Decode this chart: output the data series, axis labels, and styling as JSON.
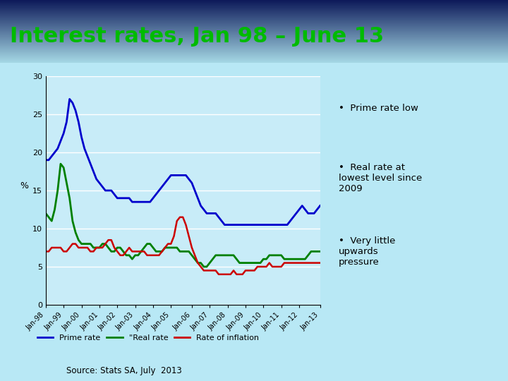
{
  "title": "Interest rates, Jan 98 – June 13",
  "title_color": "#00BB00",
  "title_fontsize": 22,
  "fig_bg": "#b8e8f5",
  "chart_bg": "#c8ecf8",
  "ylabel": "%",
  "ylim": [
    0,
    30
  ],
  "yticks": [
    0,
    5,
    10,
    15,
    20,
    25,
    30
  ],
  "xtick_labels": [
    "Jan-98",
    "Jan-99",
    "Jan-00",
    "Jan-01",
    "Jan-02",
    "Jan-03",
    "Jan-04",
    "Jan-05",
    "Jan-06",
    "Jan-07",
    "Jan-08",
    "Jan-09",
    "Jan-10",
    "Jan-11",
    "Jan-12",
    "Jan-13"
  ],
  "source_text": "Source: Stats SA, July  2013",
  "legend_entries": [
    "Prime rate",
    "\"Real rate",
    "Rate of inflation"
  ],
  "legend_colors": [
    "#0000CC",
    "#008000",
    "#CC0000"
  ],
  "bullet_points": [
    "Prime rate low",
    "Real rate at\nlowest level since\n2009",
    "Very little\nupwards\npressure"
  ],
  "prime_rate": [
    19.0,
    19.0,
    19.5,
    20.0,
    20.5,
    21.5,
    22.5,
    24.0,
    27.0,
    26.5,
    25.5,
    24.0,
    22.0,
    20.5,
    19.5,
    18.5,
    17.5,
    16.5,
    16.0,
    15.5,
    15.0,
    15.0,
    15.0,
    14.5,
    14.0,
    14.0,
    14.0,
    14.0,
    14.0,
    13.5,
    13.5,
    13.5,
    13.5,
    13.5,
    13.5,
    13.5,
    14.0,
    14.5,
    15.0,
    15.5,
    16.0,
    16.5,
    17.0,
    17.0,
    17.0,
    17.0,
    17.0,
    17.0,
    16.5,
    16.0,
    15.0,
    14.0,
    13.0,
    12.5,
    12.0,
    12.0,
    12.0,
    12.0,
    11.5,
    11.0,
    10.5,
    10.5,
    10.5,
    10.5,
    10.5,
    10.5,
    10.5,
    10.5,
    10.5,
    10.5,
    10.5,
    10.5,
    10.5,
    10.5,
    10.5,
    10.5,
    10.5,
    10.5,
    10.5,
    10.5,
    10.5,
    10.5,
    11.0,
    11.5,
    12.0,
    12.5,
    13.0,
    12.5,
    12.0,
    12.0,
    12.0,
    12.5,
    13.0
  ],
  "real_rate": [
    12.0,
    11.5,
    11.0,
    12.5,
    15.0,
    18.5,
    18.0,
    16.0,
    14.0,
    11.0,
    9.5,
    8.5,
    8.0,
    8.0,
    8.0,
    8.0,
    7.5,
    7.5,
    7.5,
    8.0,
    8.0,
    7.5,
    7.0,
    7.0,
    7.5,
    7.5,
    7.0,
    6.5,
    6.5,
    6.0,
    6.5,
    6.5,
    7.0,
    7.5,
    8.0,
    8.0,
    7.5,
    7.0,
    7.0,
    7.0,
    7.5,
    7.5,
    7.5,
    7.5,
    7.5,
    7.0,
    7.0,
    7.0,
    7.0,
    6.5,
    6.0,
    5.5,
    5.5,
    5.0,
    5.0,
    5.5,
    6.0,
    6.5,
    6.5,
    6.5,
    6.5,
    6.5,
    6.5,
    6.5,
    6.0,
    5.5,
    5.5,
    5.5,
    5.5,
    5.5,
    5.5,
    5.5,
    5.5,
    6.0,
    6.0,
    6.5,
    6.5,
    6.5,
    6.5,
    6.5,
    6.0,
    6.0,
    6.0,
    6.0,
    6.0,
    6.0,
    6.0,
    6.0,
    6.5,
    7.0,
    7.0,
    7.0,
    7.0
  ],
  "inflation": [
    7.0,
    7.0,
    7.5,
    7.5,
    7.5,
    7.5,
    7.0,
    7.0,
    7.5,
    8.0,
    8.0,
    7.5,
    7.5,
    7.5,
    7.5,
    7.0,
    7.0,
    7.5,
    7.5,
    7.5,
    8.0,
    8.5,
    8.5,
    7.5,
    7.0,
    6.5,
    6.5,
    7.0,
    7.5,
    7.0,
    7.0,
    7.0,
    7.0,
    7.0,
    6.5,
    6.5,
    6.5,
    6.5,
    6.5,
    7.0,
    7.5,
    8.0,
    8.0,
    9.0,
    11.0,
    11.5,
    11.5,
    10.5,
    9.0,
    7.5,
    6.5,
    5.5,
    5.0,
    4.5,
    4.5,
    4.5,
    4.5,
    4.5,
    4.0,
    4.0,
    4.0,
    4.0,
    4.0,
    4.5,
    4.0,
    4.0,
    4.0,
    4.5,
    4.5,
    4.5,
    4.5,
    5.0,
    5.0,
    5.0,
    5.0,
    5.5,
    5.0,
    5.0,
    5.0,
    5.0,
    5.5,
    5.5,
    5.5,
    5.5,
    5.5,
    5.5,
    5.5,
    5.5,
    5.5,
    5.5,
    5.5,
    5.5,
    5.5
  ]
}
